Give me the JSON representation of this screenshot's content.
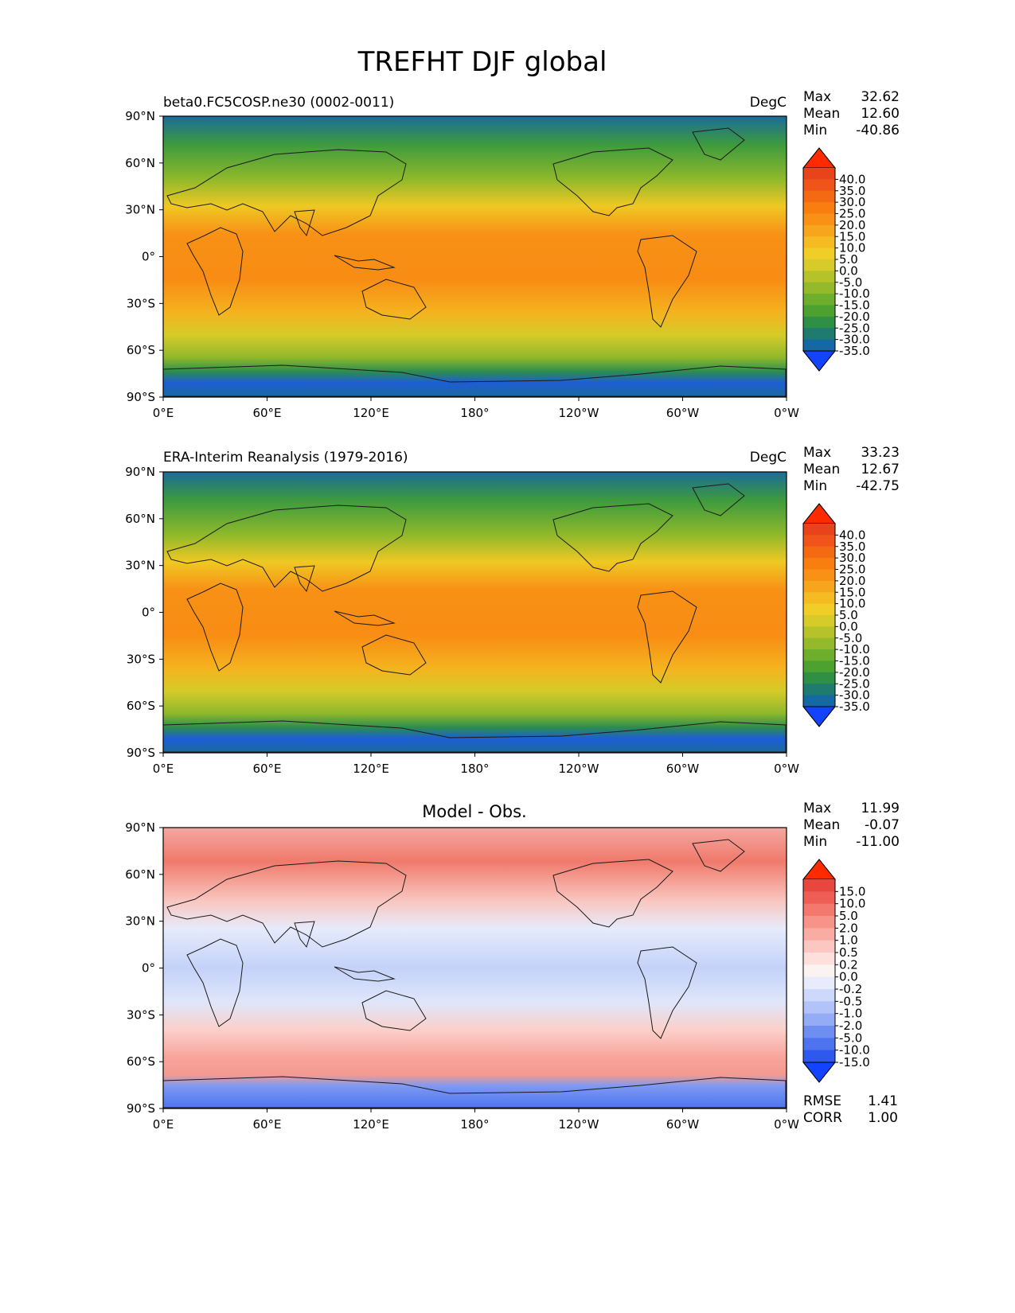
{
  "figure": {
    "title": "TREFHT DJF global"
  },
  "chart_data": [
    {
      "type": "heatmap",
      "title": "beta0.FC5COSP.ne30 (0002-0011)",
      "units": "DegC",
      "stats": [
        {
          "label": "Max",
          "value": "32.62"
        },
        {
          "label": "Mean",
          "value": "12.60"
        },
        {
          "label": "Min",
          "value": "-40.86"
        }
      ],
      "x_ticks": [
        "0°E",
        "60°E",
        "120°E",
        "180°",
        "120°W",
        "60°W",
        "0°W"
      ],
      "y_ticks": [
        "90°N",
        "60°N",
        "30°N",
        "0°",
        "30°S",
        "60°S",
        "90°S"
      ],
      "xlim": [
        0,
        360
      ],
      "ylim": [
        -90,
        90
      ],
      "colorbar": {
        "labels": [
          "40.0",
          "35.0",
          "30.0",
          "25.0",
          "20.0",
          "15.0",
          "10.0",
          "5.0",
          "0.0",
          "-5.0",
          "-10.0",
          "-15.0",
          "-20.0",
          "-25.0",
          "-30.0",
          "-35.0"
        ],
        "colors": [
          "#e8431a",
          "#f0541a",
          "#f46a12",
          "#f77e0f",
          "#f89116",
          "#f6a51c",
          "#f5bb22",
          "#f1ce27",
          "#d6cb28",
          "#b5c22a",
          "#94b92b",
          "#6dae2c",
          "#4ca12f",
          "#2f8f45",
          "#1f7b70",
          "#1468a3"
        ],
        "end_colors": [
          "#ff2a00",
          "#1244ff"
        ],
        "extend": "both"
      }
    },
    {
      "type": "heatmap",
      "title": "ERA-Interim Reanalysis (1979-2016)",
      "units": "DegC",
      "stats": [
        {
          "label": "Max",
          "value": "33.23"
        },
        {
          "label": "Mean",
          "value": "12.67"
        },
        {
          "label": "Min",
          "value": "-42.75"
        }
      ],
      "x_ticks": [
        "0°E",
        "60°E",
        "120°E",
        "180°",
        "120°W",
        "60°W",
        "0°W"
      ],
      "y_ticks": [
        "90°N",
        "60°N",
        "30°N",
        "0°",
        "30°S",
        "60°S",
        "90°S"
      ],
      "xlim": [
        0,
        360
      ],
      "ylim": [
        -90,
        90
      ],
      "colorbar": {
        "labels": [
          "40.0",
          "35.0",
          "30.0",
          "25.0",
          "20.0",
          "15.0",
          "10.0",
          "5.0",
          "0.0",
          "-5.0",
          "-10.0",
          "-15.0",
          "-20.0",
          "-25.0",
          "-30.0",
          "-35.0"
        ],
        "colors": [
          "#e8431a",
          "#f0541a",
          "#f46a12",
          "#f77e0f",
          "#f89116",
          "#f6a51c",
          "#f5bb22",
          "#f1ce27",
          "#d6cb28",
          "#b5c22a",
          "#94b92b",
          "#6dae2c",
          "#4ca12f",
          "#2f8f45",
          "#1f7b70",
          "#1468a3"
        ],
        "end_colors": [
          "#ff2a00",
          "#1244ff"
        ],
        "extend": "both"
      }
    },
    {
      "type": "heatmap",
      "title": "Model - Obs.",
      "units": "",
      "stats": [
        {
          "label": "Max",
          "value": "11.99"
        },
        {
          "label": "Mean",
          "value": "-0.07"
        },
        {
          "label": "Min",
          "value": "-11.00"
        }
      ],
      "extra_stats": [
        {
          "label": "RMSE",
          "value": "1.41"
        },
        {
          "label": "CORR",
          "value": "1.00"
        }
      ],
      "x_ticks": [
        "0°E",
        "60°E",
        "120°E",
        "180°",
        "120°W",
        "60°W",
        "0°W"
      ],
      "y_ticks": [
        "90°N",
        "60°N",
        "30°N",
        "0°",
        "30°S",
        "60°S",
        "90°S"
      ],
      "xlim": [
        0,
        360
      ],
      "ylim": [
        -90,
        90
      ],
      "colorbar": {
        "labels": [
          "15.0",
          "10.0",
          "5.0",
          "2.0",
          "1.0",
          "0.5",
          "0.2",
          "0.0",
          "-0.2",
          "-0.5",
          "-1.0",
          "-2.0",
          "-5.0",
          "-10.0",
          "-15.0"
        ],
        "colors": [
          "#e8473f",
          "#ee5e55",
          "#f3786e",
          "#f7948a",
          "#f9aca3",
          "#fbc7c0",
          "#fde0dc",
          "#fbf3f1",
          "#e7ebfb",
          "#cdd8fa",
          "#b1c3f8",
          "#94acf5",
          "#6f8ef2",
          "#4d73ef",
          "#2f59ee"
        ],
        "end_colors": [
          "#ff2a00",
          "#1244ff"
        ],
        "extend": "both"
      }
    }
  ]
}
